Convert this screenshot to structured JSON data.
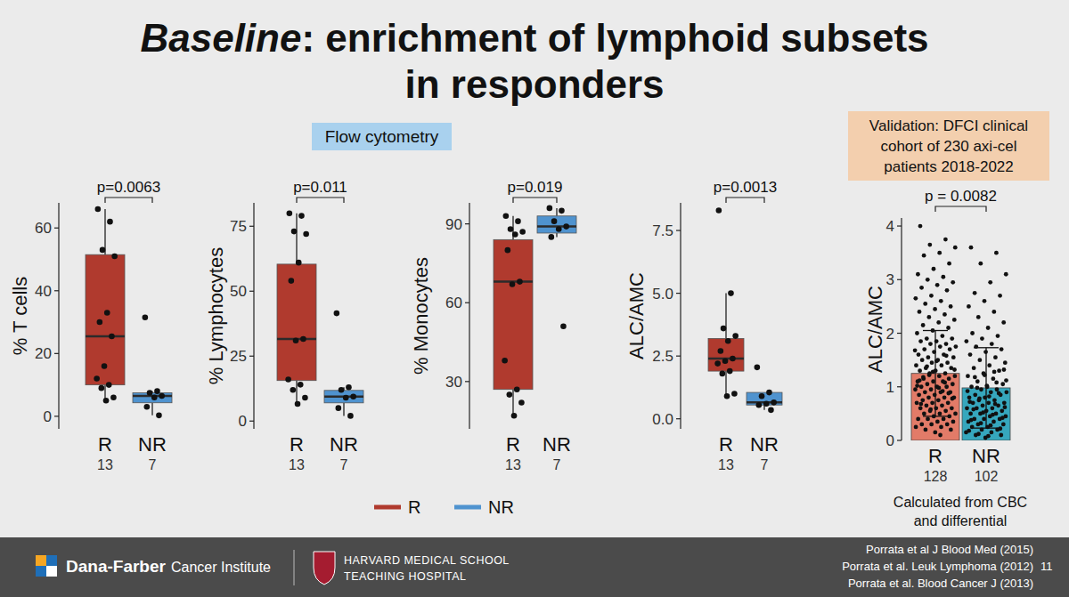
{
  "slide": {
    "title": {
      "italic": "Baseline",
      "lines": [
        ": enrichment of lymphoid subsets",
        "in responders"
      ]
    },
    "method_label": "Flow cytometry",
    "legend": [
      {
        "name": "R",
        "color": "#b03a2e"
      },
      {
        "name": "NR",
        "color": "#4f93cf"
      }
    ],
    "footer": {
      "institution": [
        "Dana-Farber",
        "Cancer Institute"
      ],
      "hospital": [
        "HARVARD MEDICAL SCHOOL",
        "TEACHING HOSPITAL"
      ],
      "references": [
        "Porrata et al J Blood Med (2015)",
        "Porrata et al. Leuk Lymphoma (2012)",
        "Porrata et al. Blood Cancer J (2013)"
      ],
      "page": 11
    }
  },
  "chart_data": [
    {
      "type": "box",
      "ylabel": "% T cells",
      "categories": [
        "R",
        "NR"
      ],
      "n": [
        13,
        7
      ],
      "colors": [
        "#b03a2e",
        "#4f93cf"
      ],
      "ylim": [
        -4,
        68
      ],
      "yticks": [
        0,
        20,
        40,
        60
      ],
      "annotation": "p=0.0063",
      "boxes": [
        {
          "min": 5,
          "q1": 10,
          "median": 25.5,
          "q3": 51.5,
          "max": 66
        },
        {
          "min": 0.3,
          "q1": 4.3,
          "median": 6.5,
          "q3": 7.5,
          "max": 8
        }
      ],
      "points": [
        [
          66,
          62,
          53,
          51,
          33,
          30,
          25.5,
          16,
          12,
          10,
          9,
          6,
          5
        ],
        [
          31.5,
          8,
          7.5,
          6.5,
          6,
          3,
          0.3
        ]
      ]
    },
    {
      "type": "box",
      "ylabel": "% Lymphocytes",
      "categories": [
        "R",
        "NR"
      ],
      "n": [
        13,
        7
      ],
      "colors": [
        "#b03a2e",
        "#4f93cf"
      ],
      "ylim": [
        -3,
        84
      ],
      "yticks": [
        0,
        25,
        50,
        75
      ],
      "annotation": "p=0.011",
      "boxes": [
        {
          "min": 6.6,
          "q1": 15.6,
          "median": 31.6,
          "q3": 60.4,
          "max": 80
        },
        {
          "min": 2,
          "q1": 7,
          "median": 9.4,
          "q3": 11.8,
          "max": 13
        }
      ],
      "points": [
        [
          80,
          79,
          73,
          72,
          61,
          54,
          31.6,
          31,
          16,
          14,
          12,
          9,
          6.6
        ],
        [
          41.5,
          13,
          12,
          9.4,
          9,
          5,
          2
        ]
      ]
    },
    {
      "type": "box",
      "ylabel": "% Monocytes",
      "categories": [
        "R",
        "NR"
      ],
      "n": [
        13,
        7
      ],
      "colors": [
        "#b03a2e",
        "#4f93cf"
      ],
      "ylim": [
        12,
        98
      ],
      "yticks": [
        30,
        60,
        90
      ],
      "annotation": "p=0.019",
      "boxes": [
        {
          "min": 17,
          "q1": 27,
          "median": 68,
          "q3": 84,
          "max": 93
        },
        {
          "min": 85,
          "q1": 86.5,
          "median": 89,
          "q3": 93,
          "max": 96
        }
      ],
      "points": [
        [
          93,
          91,
          88,
          87,
          86,
          80,
          68,
          67,
          38,
          27,
          25,
          22,
          17
        ],
        [
          96,
          95,
          91,
          89,
          88,
          85,
          51
        ]
      ]
    },
    {
      "type": "box",
      "ylabel": "ALC/AMC",
      "categories": [
        "R",
        "NR"
      ],
      "n": [
        13,
        7
      ],
      "colors": [
        "#b03a2e",
        "#4f93cf"
      ],
      "ylim": [
        -0.4,
        8.6
      ],
      "yticks": [
        {
          "value": 0,
          "label": "0.0"
        },
        2.5,
        {
          "value": 5,
          "label": "5.0"
        },
        7.5
      ],
      "annotation": "p=0.0013",
      "boxes": [
        {
          "min": 0.9,
          "q1": 1.9,
          "median": 2.4,
          "q3": 3.2,
          "max": 5.0
        },
        {
          "min": 0.35,
          "q1": 0.55,
          "median": 0.65,
          "q3": 1.05,
          "max": 1.05
        }
      ],
      "points": [
        [
          8.3,
          5.0,
          3.6,
          3.3,
          3.1,
          2.7,
          2.4,
          2.3,
          2.2,
          1.9,
          1.8,
          1.0,
          0.9
        ],
        [
          2.05,
          1.05,
          0.9,
          0.65,
          0.6,
          0.55,
          0.35
        ]
      ]
    },
    {
      "type": "bar",
      "ylabel": "ALC/AMC",
      "categories": [
        "R",
        "NR"
      ],
      "n": [
        128,
        102
      ],
      "colors": [
        "#e27b68",
        "#36a7bd"
      ],
      "ylim": [
        0,
        4.15
      ],
      "yticks": [
        0,
        1,
        2,
        3,
        4
      ],
      "subtitle": [
        "Validation: DFCI clinical",
        "cohort of 230 axi-cel",
        "patients 2018-2022"
      ],
      "annotation": "p = 0.0082",
      "note": [
        "Calculated from CBC",
        "and differential"
      ],
      "values": [
        1.25,
        0.98
      ],
      "errors": [
        0.8,
        0.75
      ],
      "points": [
        [
          4.0,
          3.75,
          3.65,
          3.6,
          3.5,
          3.45,
          3.3,
          3.2,
          3.1,
          3.05,
          3.0,
          2.95,
          2.9,
          2.85,
          2.8,
          2.7,
          2.65,
          2.6,
          2.55,
          2.5,
          2.45,
          2.4,
          2.35,
          2.3,
          2.25,
          2.2,
          2.15,
          2.1,
          2.05,
          2.0,
          1.95,
          1.9,
          1.9,
          1.85,
          1.85,
          1.8,
          1.8,
          1.75,
          1.75,
          1.7,
          1.7,
          1.65,
          1.6,
          1.6,
          1.55,
          1.55,
          1.5,
          1.5,
          1.45,
          1.45,
          1.4,
          1.4,
          1.35,
          1.35,
          1.3,
          1.3,
          1.25,
          1.25,
          1.2,
          1.2,
          1.15,
          1.15,
          1.1,
          1.1,
          1.1,
          1.05,
          1.05,
          1.0,
          1.0,
          1.0,
          0.95,
          0.95,
          0.9,
          0.9,
          0.9,
          0.85,
          0.85,
          0.8,
          0.8,
          0.8,
          0.75,
          0.75,
          0.7,
          0.7,
          0.7,
          0.65,
          0.65,
          0.6,
          0.6,
          0.6,
          0.55,
          0.55,
          0.5,
          0.5,
          0.5,
          0.45,
          0.45,
          0.4,
          0.4,
          0.4,
          0.35,
          0.35,
          0.3,
          0.3,
          0.3,
          0.25,
          0.25,
          0.2,
          0.2,
          0.15,
          1.12,
          1.08,
          1.22,
          1.32,
          0.98,
          1.18,
          0.88,
          1.28,
          1.02,
          0.92,
          1.38,
          0.78,
          1.48,
          0.68,
          1.58,
          0.58,
          1.68,
          0.1
        ],
        [
          3.6,
          3.5,
          3.3,
          3.1,
          2.95,
          2.75,
          2.7,
          2.6,
          2.5,
          2.4,
          2.3,
          2.2,
          2.1,
          2.0,
          1.95,
          1.9,
          1.85,
          1.8,
          1.75,
          1.7,
          1.65,
          1.6,
          1.55,
          1.5,
          1.45,
          1.4,
          1.35,
          1.3,
          1.25,
          1.2,
          1.15,
          1.1,
          1.05,
          1.0,
          1.0,
          0.95,
          0.95,
          0.9,
          0.9,
          0.85,
          0.85,
          0.8,
          0.8,
          0.75,
          0.75,
          0.7,
          0.7,
          0.7,
          0.65,
          0.65,
          0.6,
          0.6,
          0.6,
          0.55,
          0.55,
          0.5,
          0.5,
          0.5,
          0.45,
          0.45,
          0.4,
          0.4,
          0.4,
          0.35,
          0.35,
          0.3,
          0.3,
          0.25,
          0.25,
          0.2,
          0.2,
          0.15,
          0.15,
          0.1,
          0.1,
          0.05,
          0.72,
          0.68,
          0.78,
          0.62,
          0.82,
          0.58,
          0.88,
          0.52,
          0.92,
          0.48,
          0.98,
          0.42,
          1.02,
          0.38,
          1.08,
          0.32,
          1.12,
          0.28,
          1.18,
          0.22,
          1.22,
          0.18,
          1.28,
          0.12,
          1.32,
          0.08
        ]
      ]
    }
  ]
}
